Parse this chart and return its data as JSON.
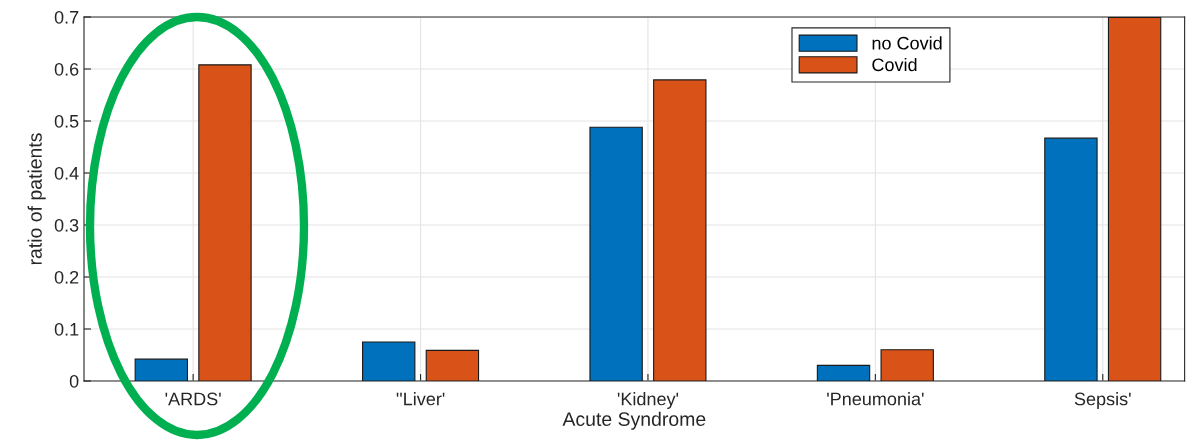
{
  "chart_data": {
    "type": "bar",
    "xlabel": "Acute Syndrome",
    "ylabel": "ratio of patients",
    "categories": [
      "'ARDS'",
      "''Liver'",
      "'Kidney'",
      "'Pneumonia'",
      "Sepsis'"
    ],
    "series": [
      {
        "name": "no Covid",
        "color": "#0072bd",
        "values": [
          0.042,
          0.075,
          0.488,
          0.03,
          0.467
        ]
      },
      {
        "name": "Covid",
        "color": "#d95319",
        "values": [
          0.608,
          0.059,
          0.579,
          0.06,
          0.699
        ]
      }
    ],
    "ylim": [
      0,
      0.7
    ],
    "yticks": [
      0,
      0.1,
      0.2,
      0.3,
      0.4,
      0.5,
      0.6,
      0.7
    ],
    "grid": true,
    "legend": "top"
  }
}
